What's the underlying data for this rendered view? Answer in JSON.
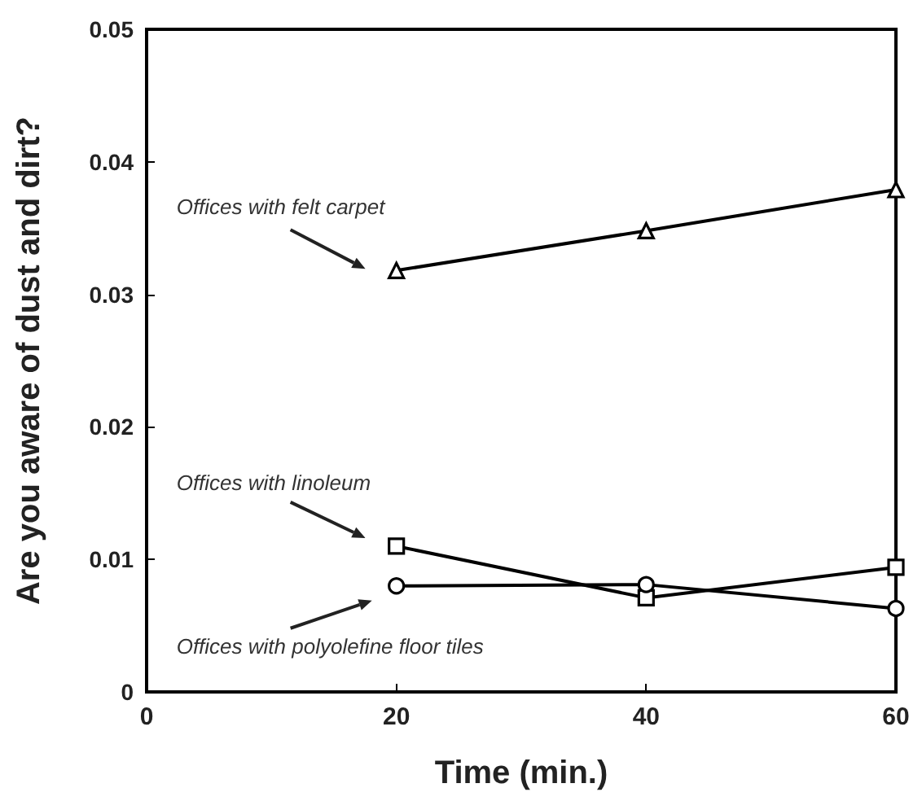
{
  "chart_data": {
    "type": "line",
    "xlabel": "Time (min.)",
    "ylabel": "Are you aware of dust and dirt?",
    "x": [
      20,
      40,
      60
    ],
    "series": [
      {
        "name": "Offices with felt carpet",
        "color": "#000000",
        "marker": "triangle",
        "values": [
          0.0318,
          0.0348,
          0.0379
        ]
      },
      {
        "name": "Offices with linoleum",
        "color": "#000000",
        "marker": "square",
        "values": [
          0.011,
          0.0071,
          0.0094
        ]
      },
      {
        "name": "Offices with polyolefine floor tiles",
        "color": "#000000",
        "marker": "circle",
        "values": [
          0.008,
          0.0081,
          0.0063
        ]
      }
    ],
    "xlim": [
      0,
      60
    ],
    "xticks": [
      0,
      20,
      40,
      60
    ],
    "ylim": [
      0,
      0.05
    ],
    "yticks": [
      0,
      0.01,
      0.02,
      0.03,
      0.04,
      0.05
    ],
    "grid": false,
    "legend": false,
    "line_style": "solid"
  }
}
